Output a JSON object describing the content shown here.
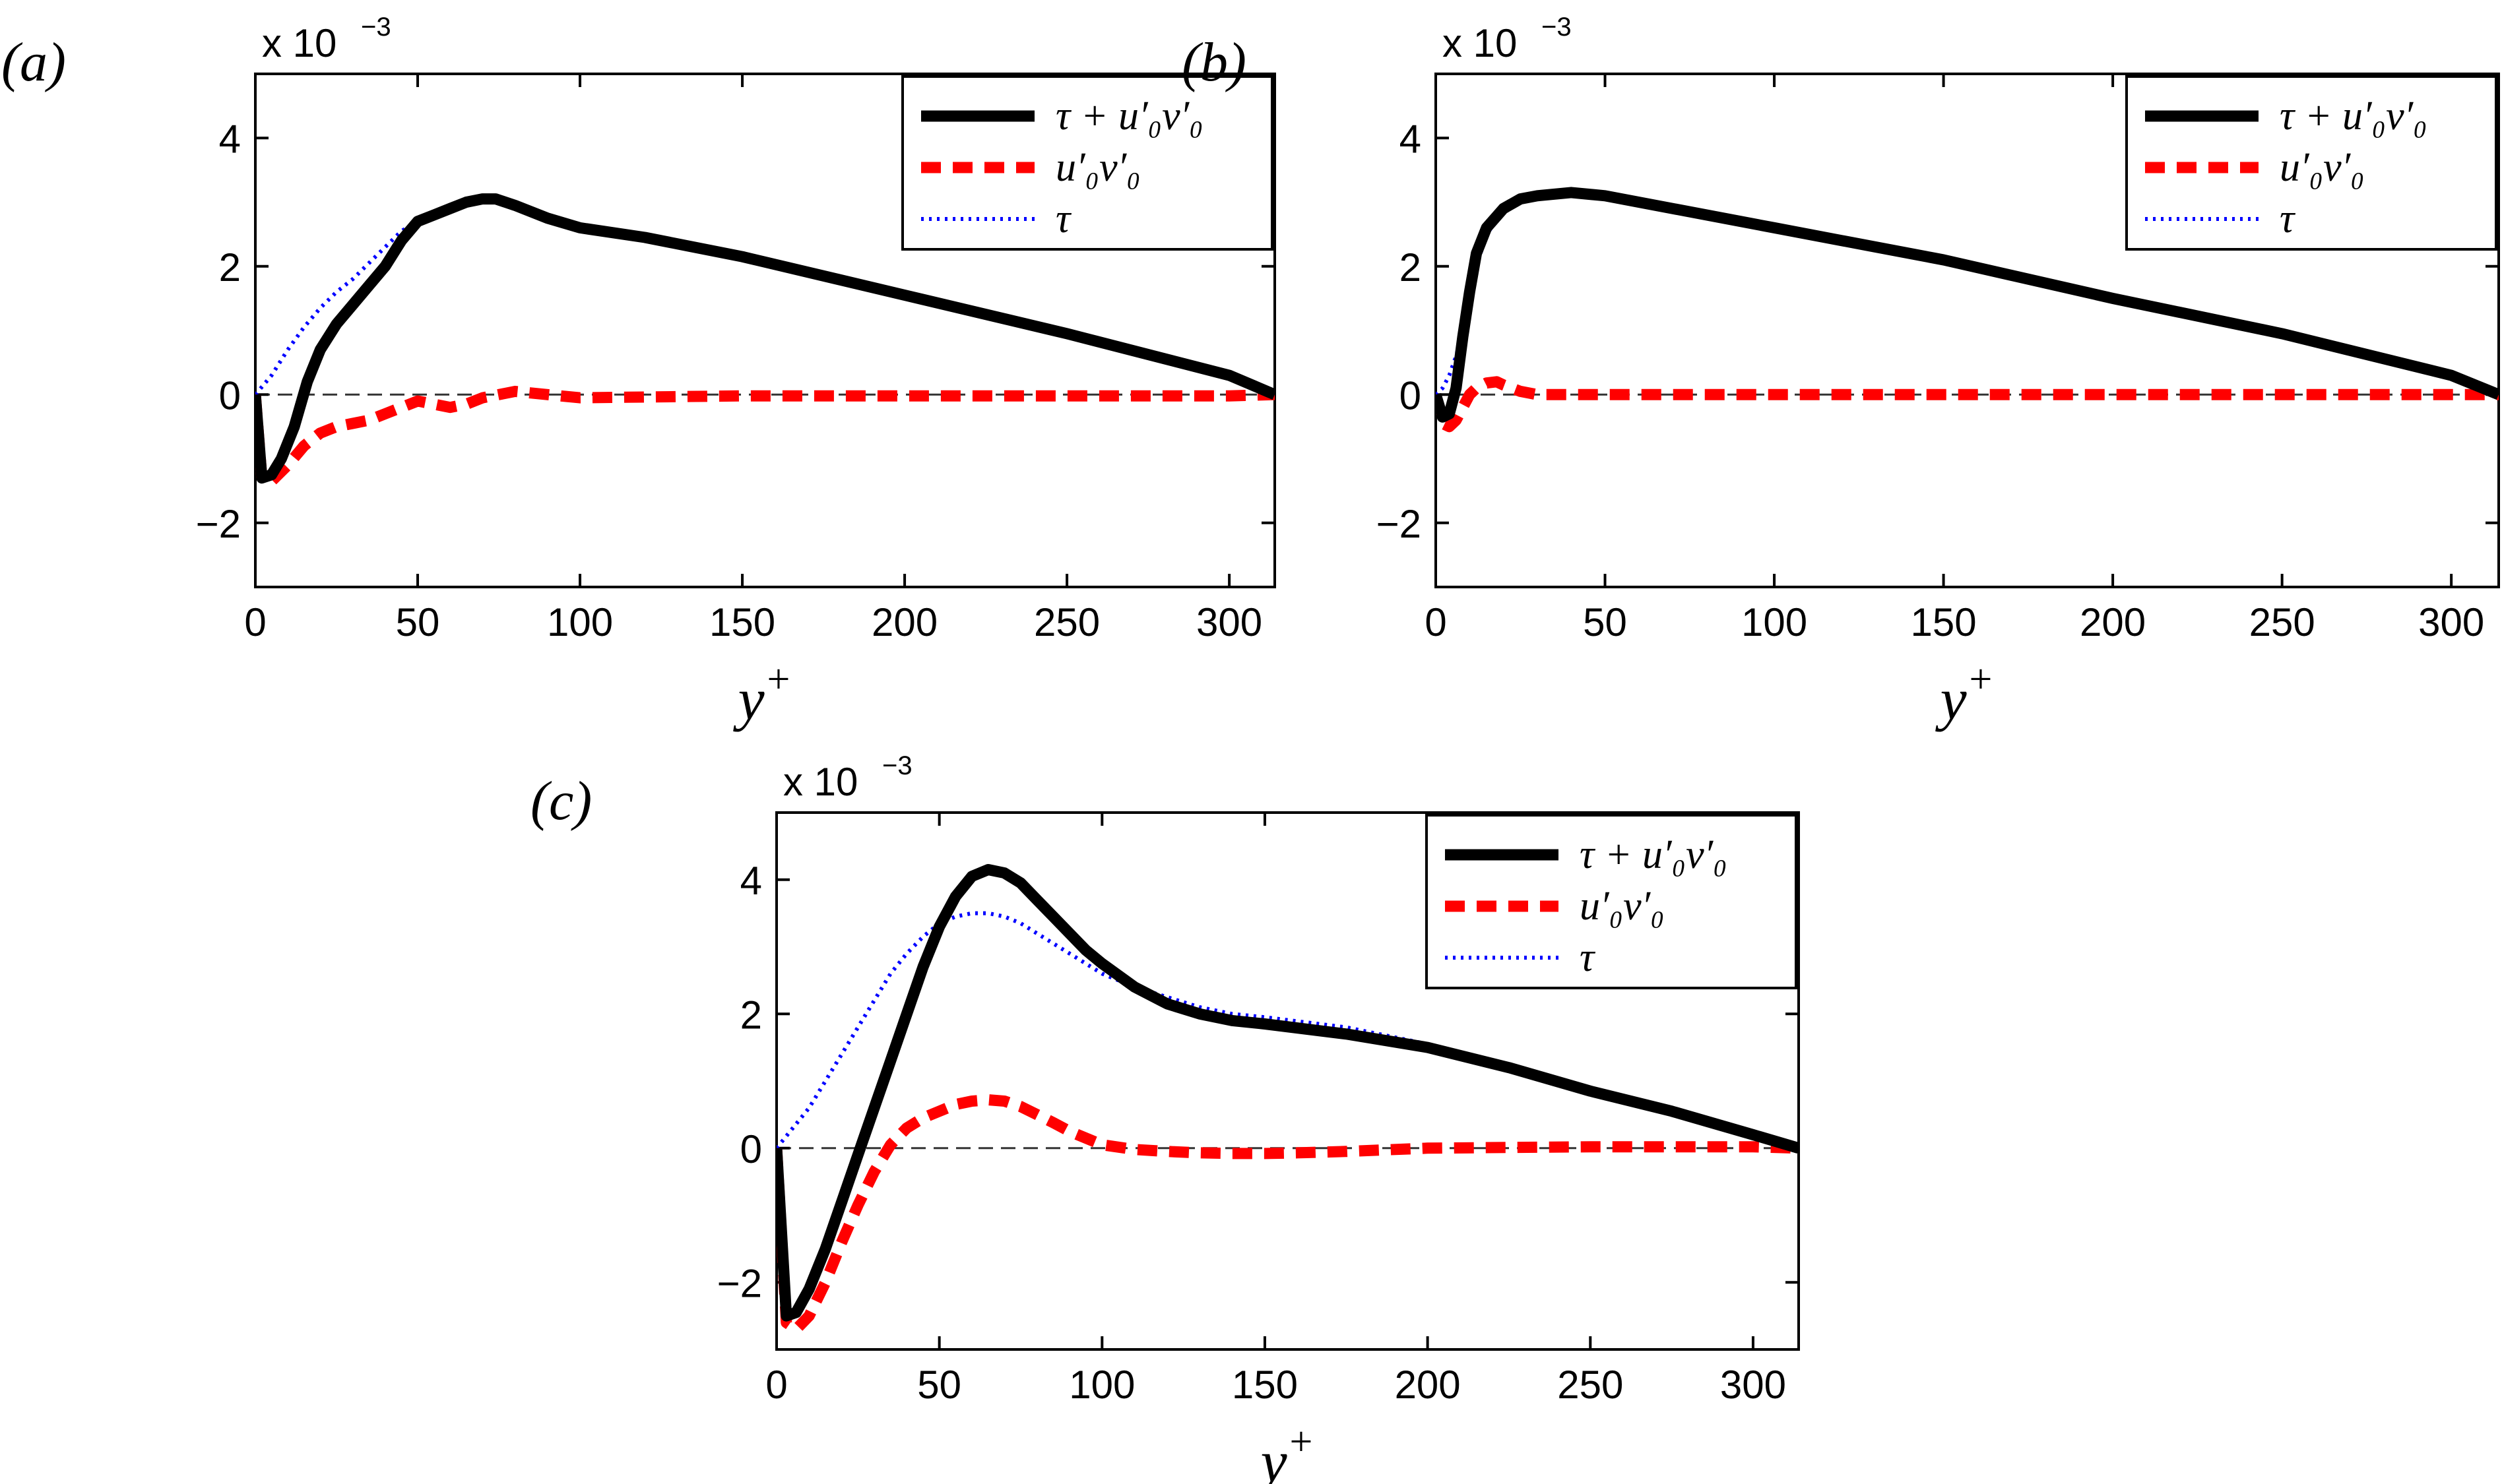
{
  "chart_data": [
    {
      "type": "line",
      "panel_label": "(a)",
      "xlabel": "y+",
      "xlabel_base": "y",
      "xlabel_sup": "+",
      "xlim": [
        0,
        314
      ],
      "ylim": [
        -3,
        5
      ],
      "x_ticks": [
        0,
        50,
        100,
        150,
        200,
        250,
        300
      ],
      "y_ticks": [
        -2,
        0,
        2,
        4
      ],
      "y_tick_labels": [
        "−2",
        "0",
        "2",
        "4"
      ],
      "y_scale_label": "x 10",
      "y_scale_exponent": "−3",
      "legend": {
        "position": "top-right",
        "entries": [
          "τ + u′₀v′₀",
          "u′₀v′₀",
          "τ"
        ]
      },
      "series": [
        {
          "name": "τ + u′₀v′₀",
          "style": "solid",
          "color": "#000000",
          "x": [
            0,
            2,
            5,
            8,
            12,
            16,
            20,
            25,
            30,
            35,
            40,
            45,
            50,
            55,
            60,
            65,
            70,
            74,
            80,
            90,
            100,
            120,
            150,
            200,
            250,
            300,
            314
          ],
          "values": [
            0,
            -1.3,
            -1.25,
            -1.0,
            -0.5,
            0.2,
            0.7,
            1.1,
            1.4,
            1.7,
            2.0,
            2.4,
            2.7,
            2.8,
            2.9,
            3.0,
            3.05,
            3.05,
            2.95,
            2.75,
            2.6,
            2.45,
            2.15,
            1.55,
            0.95,
            0.3,
            0.0
          ]
        },
        {
          "name": "u′₀v′₀",
          "style": "dashed",
          "color": "#ff0000",
          "x": [
            0,
            2,
            5,
            10,
            15,
            20,
            25,
            30,
            35,
            40,
            45,
            50,
            55,
            60,
            65,
            70,
            75,
            80,
            90,
            100,
            150,
            200,
            250,
            300,
            314
          ],
          "values": [
            0,
            -1.3,
            -1.35,
            -1.1,
            -0.8,
            -0.6,
            -0.5,
            -0.45,
            -0.4,
            -0.3,
            -0.2,
            -0.1,
            -0.15,
            -0.2,
            -0.15,
            -0.05,
            0.0,
            0.05,
            0.0,
            -0.05,
            -0.02,
            -0.02,
            -0.02,
            -0.02,
            0.0
          ]
        },
        {
          "name": "τ",
          "style": "dotted",
          "color": "#0000ff",
          "x": [
            0,
            5,
            10,
            15,
            20,
            25,
            30,
            35,
            40,
            45,
            50,
            55,
            60,
            65,
            70,
            75,
            80,
            90,
            100,
            120,
            150,
            200,
            250,
            300,
            314
          ],
          "values": [
            0,
            0.3,
            0.7,
            1.05,
            1.35,
            1.6,
            1.8,
            2.05,
            2.3,
            2.55,
            2.7,
            2.85,
            2.95,
            3.0,
            3.0,
            3.0,
            2.9,
            2.75,
            2.6,
            2.45,
            2.15,
            1.55,
            0.95,
            0.3,
            0.0
          ]
        }
      ]
    },
    {
      "type": "line",
      "panel_label": "(b)",
      "xlabel": "y+",
      "xlabel_base": "y",
      "xlabel_sup": "+",
      "xlim": [
        0,
        314
      ],
      "ylim": [
        -3,
        5
      ],
      "x_ticks": [
        0,
        50,
        100,
        150,
        200,
        250,
        300
      ],
      "y_ticks": [
        -2,
        0,
        2,
        4
      ],
      "y_tick_labels": [
        "−2",
        "0",
        "2",
        "4"
      ],
      "y_scale_label": "x 10",
      "y_scale_exponent": "−3",
      "legend": {
        "position": "top-right",
        "entries": [
          "τ + u′₀v′₀",
          "u′₀v′₀",
          "τ"
        ]
      },
      "series": [
        {
          "name": "τ + u′₀v′₀",
          "style": "solid",
          "color": "#000000",
          "x": [
            0,
            2,
            4,
            6,
            8,
            10,
            12,
            15,
            20,
            25,
            30,
            40,
            50,
            100,
            150,
            200,
            250,
            300,
            314
          ],
          "values": [
            0,
            -0.35,
            -0.3,
            0.1,
            0.9,
            1.6,
            2.2,
            2.6,
            2.9,
            3.05,
            3.1,
            3.15,
            3.1,
            2.6,
            2.1,
            1.5,
            0.95,
            0.3,
            0.0
          ]
        },
        {
          "name": "u′₀v′₀",
          "style": "dashed",
          "color": "#ff0000",
          "x": [
            0,
            2,
            4,
            6,
            8,
            10,
            12,
            15,
            18,
            20,
            25,
            30,
            50,
            100,
            150,
            200,
            250,
            300,
            314
          ],
          "values": [
            0,
            -0.45,
            -0.5,
            -0.4,
            -0.2,
            0.0,
            0.1,
            0.18,
            0.2,
            0.15,
            0.05,
            0.0,
            0.0,
            0.0,
            0.0,
            0.0,
            0.0,
            0.0,
            0.0
          ]
        },
        {
          "name": "τ",
          "style": "dotted",
          "color": "#0000ff",
          "x": [
            0,
            2,
            4,
            6,
            8,
            10,
            12,
            15,
            20,
            25,
            30,
            40,
            50,
            100,
            150,
            200,
            250,
            300,
            314
          ],
          "values": [
            0,
            0.1,
            0.3,
            0.6,
            1.0,
            1.5,
            2.0,
            2.5,
            2.85,
            3.0,
            3.1,
            3.15,
            3.1,
            2.6,
            2.1,
            1.5,
            0.95,
            0.3,
            0.0
          ]
        }
      ]
    },
    {
      "type": "line",
      "panel_label": "(c)",
      "xlabel": "y+",
      "xlabel_base": "y",
      "xlabel_sup": "+",
      "xlim": [
        0,
        314
      ],
      "ylim": [
        -3,
        5
      ],
      "x_ticks": [
        0,
        50,
        100,
        150,
        200,
        250,
        300
      ],
      "y_ticks": [
        -2,
        0,
        2,
        4
      ],
      "y_tick_labels": [
        "−2",
        "0",
        "2",
        "4"
      ],
      "y_scale_label": "x 10",
      "y_scale_exponent": "−3",
      "legend": {
        "position": "top-right",
        "entries": [
          "τ + u′₀v′₀",
          "u′₀v′₀",
          "τ"
        ]
      },
      "series": [
        {
          "name": "τ + u′₀v′₀",
          "style": "solid",
          "color": "#000000",
          "x": [
            0,
            3,
            6,
            10,
            15,
            20,
            25,
            30,
            35,
            40,
            45,
            50,
            55,
            60,
            65,
            70,
            75,
            80,
            85,
            90,
            95,
            100,
            110,
            120,
            130,
            140,
            150,
            175,
            200,
            225,
            250,
            275,
            300,
            314
          ],
          "values": [
            0,
            -2.5,
            -2.45,
            -2.1,
            -1.5,
            -0.8,
            -0.1,
            0.6,
            1.3,
            2.0,
            2.7,
            3.3,
            3.75,
            4.05,
            4.15,
            4.1,
            3.95,
            3.7,
            3.45,
            3.2,
            2.95,
            2.75,
            2.4,
            2.15,
            2.0,
            1.9,
            1.85,
            1.7,
            1.5,
            1.2,
            0.85,
            0.55,
            0.2,
            0.0
          ]
        },
        {
          "name": "u′₀v′₀",
          "style": "dashed",
          "color": "#ff0000",
          "x": [
            0,
            3,
            6,
            10,
            15,
            20,
            25,
            30,
            35,
            40,
            45,
            50,
            55,
            60,
            65,
            70,
            75,
            80,
            85,
            90,
            95,
            100,
            110,
            120,
            130,
            140,
            150,
            160,
            175,
            200,
            250,
            300,
            314
          ],
          "values": [
            0,
            -2.6,
            -2.7,
            -2.5,
            -2.0,
            -1.4,
            -0.85,
            -0.35,
            0.05,
            0.3,
            0.45,
            0.55,
            0.65,
            0.7,
            0.72,
            0.7,
            0.62,
            0.5,
            0.38,
            0.25,
            0.15,
            0.05,
            -0.02,
            -0.05,
            -0.07,
            -0.08,
            -0.08,
            -0.07,
            -0.05,
            0.0,
            0.02,
            0.02,
            0.0
          ]
        },
        {
          "name": "τ",
          "style": "dotted",
          "color": "#0000ff",
          "x": [
            0,
            5,
            10,
            15,
            20,
            25,
            30,
            35,
            40,
            45,
            50,
            55,
            60,
            65,
            70,
            75,
            80,
            85,
            90,
            95,
            100,
            110,
            120,
            130,
            140,
            150,
            175,
            200,
            225,
            250,
            275,
            300,
            314
          ],
          "values": [
            0,
            0.3,
            0.6,
            1.0,
            1.4,
            1.8,
            2.2,
            2.6,
            2.9,
            3.15,
            3.35,
            3.45,
            3.5,
            3.5,
            3.45,
            3.35,
            3.2,
            3.05,
            2.9,
            2.75,
            2.6,
            2.4,
            2.25,
            2.1,
            2.0,
            1.95,
            1.8,
            1.55,
            1.2,
            0.85,
            0.55,
            0.2,
            0.0
          ]
        }
      ]
    }
  ]
}
